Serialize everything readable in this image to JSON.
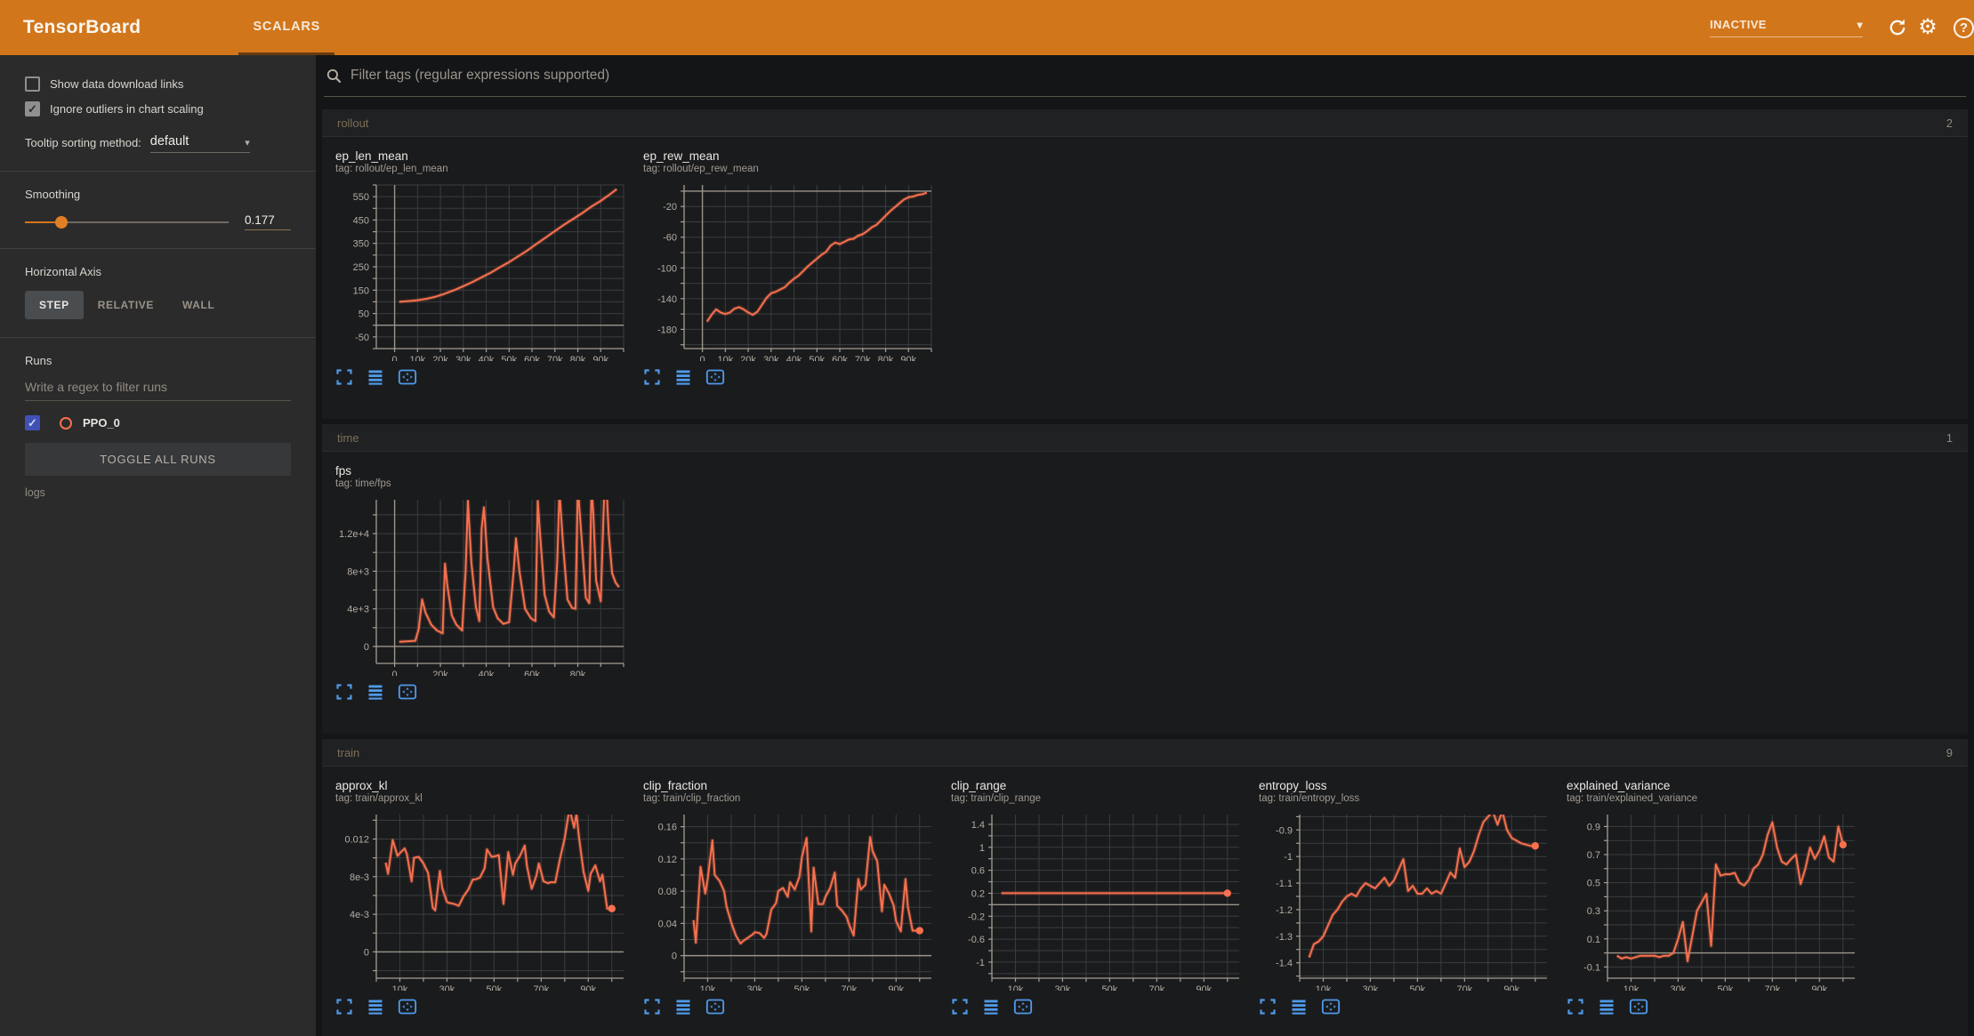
{
  "topbar": {
    "title": "TensorBoard",
    "tab": "SCALARS",
    "status": "INACTIVE"
  },
  "colors": {
    "accent_orange": "#d2761c",
    "series_line": "#f8704e",
    "icon_blue": "#4f9bea",
    "run_checkbox": "#3f51b5"
  },
  "sidebar": {
    "checkboxes": [
      {
        "label": "Show data download links",
        "checked": false
      },
      {
        "label": "Ignore outliers in chart scaling",
        "checked": true
      }
    ],
    "tooltip_sort": {
      "label": "Tooltip sorting method:",
      "value": "default"
    },
    "smoothing": {
      "label": "Smoothing",
      "value": "0.177"
    },
    "horizontal_axis": {
      "label": "Horizontal Axis",
      "options": [
        "STEP",
        "RELATIVE",
        "WALL"
      ],
      "selected": "STEP"
    },
    "runs": {
      "label": "Runs",
      "filter_placeholder": "Write a regex to filter runs",
      "items": [
        {
          "name": "PPO_0",
          "checked": true,
          "color": "#f8704e"
        }
      ],
      "toggle_all_label": "TOGGLE ALL RUNS",
      "footer": "logs"
    }
  },
  "main": {
    "filter_placeholder": "Filter tags (regular expressions supported)",
    "sections": [
      {
        "name": "rollout",
        "count": "2"
      },
      {
        "name": "time",
        "count": "1"
      },
      {
        "name": "train",
        "count": "9"
      }
    ]
  },
  "chart_data": [
    {
      "type": "line",
      "section": "rollout",
      "title": "ep_len_mean",
      "tag": "tag: rollout/ep_len_mean",
      "xlim": [
        -8,
        100
      ],
      "ylim": [
        -100,
        600
      ],
      "xgrid": 10,
      "ygrid": 50,
      "zero_h": true,
      "zero_v": true,
      "endpoint": false,
      "xticks": [
        [
          0,
          "0"
        ],
        [
          10,
          "10k"
        ],
        [
          20,
          "20k"
        ],
        [
          30,
          "30k"
        ],
        [
          40,
          "40k"
        ],
        [
          50,
          "50k"
        ],
        [
          60,
          "60k"
        ],
        [
          70,
          "70k"
        ],
        [
          80,
          "80k"
        ],
        [
          90,
          "90k"
        ]
      ],
      "yticks": [
        [
          -50,
          "-50"
        ],
        [
          50,
          "50"
        ],
        [
          150,
          "150"
        ],
        [
          250,
          "250"
        ],
        [
          350,
          "350"
        ],
        [
          450,
          "450"
        ],
        [
          550,
          "550"
        ]
      ],
      "x_k": [
        2,
        6,
        10,
        14,
        18,
        22,
        26,
        30,
        34,
        38,
        42,
        46,
        50,
        54,
        58,
        62,
        66,
        70,
        74,
        78,
        82,
        86,
        90,
        94,
        97
      ],
      "y": [
        100,
        103,
        107,
        113,
        122,
        135,
        150,
        167,
        185,
        205,
        225,
        248,
        270,
        295,
        320,
        348,
        375,
        403,
        430,
        455,
        480,
        508,
        532,
        560,
        582
      ]
    },
    {
      "type": "line",
      "section": "rollout",
      "title": "ep_rew_mean",
      "tag": "tag: rollout/ep_rew_mean",
      "xlim": [
        -8,
        100
      ],
      "ylim": [
        -205,
        8
      ],
      "xgrid": 10,
      "ygrid": 20,
      "zero_h": true,
      "zero_v": true,
      "endpoint": false,
      "xticks": [
        [
          0,
          "0"
        ],
        [
          10,
          "10k"
        ],
        [
          20,
          "20k"
        ],
        [
          30,
          "30k"
        ],
        [
          40,
          "40k"
        ],
        [
          50,
          "50k"
        ],
        [
          60,
          "60k"
        ],
        [
          70,
          "70k"
        ],
        [
          80,
          "80k"
        ],
        [
          90,
          "90k"
        ]
      ],
      "yticks": [
        [
          -180,
          "-180"
        ],
        [
          -140,
          "-140"
        ],
        [
          -100,
          "-100"
        ],
        [
          -60,
          "-60"
        ],
        [
          -20,
          "-20"
        ]
      ],
      "x_k": [
        2,
        4,
        6,
        8,
        10,
        12,
        14,
        16,
        18,
        20,
        22,
        24,
        26,
        28,
        30,
        32,
        34,
        36,
        38,
        40,
        42,
        44,
        46,
        48,
        50,
        52,
        54,
        56,
        58,
        60,
        62,
        64,
        66,
        68,
        70,
        72,
        74,
        76,
        78,
        80,
        82,
        84,
        86,
        88,
        90,
        92,
        94,
        96,
        98
      ],
      "y": [
        -170,
        -161,
        -154,
        -158,
        -160,
        -158,
        -153,
        -151,
        -154,
        -158,
        -161,
        -157,
        -148,
        -139,
        -133,
        -131,
        -128,
        -125,
        -119,
        -114,
        -110,
        -104,
        -98,
        -93,
        -88,
        -83,
        -79,
        -71,
        -67,
        -69,
        -66,
        -63,
        -62,
        -58,
        -56,
        -52,
        -47,
        -44,
        -38,
        -32,
        -26,
        -21,
        -16,
        -11,
        -8,
        -7,
        -5,
        -4,
        -2
      ]
    },
    {
      "type": "line",
      "section": "time",
      "title": "fps",
      "tag": "tag: time/fps",
      "xlim": [
        -8,
        100
      ],
      "ylim": [
        -1800,
        15600
      ],
      "xgrid": 10,
      "ygrid": 2000,
      "zero_h": true,
      "zero_v": true,
      "endpoint": false,
      "xticks": [
        [
          0,
          "0"
        ],
        [
          20,
          "20k"
        ],
        [
          40,
          "40k"
        ],
        [
          60,
          "60k"
        ],
        [
          80,
          "80k"
        ]
      ],
      "yticks": [
        [
          0,
          "0"
        ],
        [
          4000,
          "4e+3"
        ],
        [
          8000,
          "8e+3"
        ],
        [
          12000,
          "1.2e+4"
        ]
      ],
      "x_k": [
        2,
        9,
        10.5,
        12,
        13.5,
        16,
        18.5,
        21,
        22,
        23,
        25,
        27,
        29.5,
        31,
        32,
        33.5,
        35.5,
        37,
        38,
        39,
        40.5,
        43,
        45,
        47.5,
        50,
        52,
        53,
        54.5,
        57,
        59.5,
        61.5,
        62.5,
        63.5,
        65.5,
        67.5,
        69.5,
        71,
        72,
        73.5,
        75.5,
        77.5,
        79,
        80,
        81.5,
        83.5,
        85,
        86,
        86.8,
        88,
        90,
        91.5,
        92.5,
        93.5,
        95,
        96.5,
        98
      ],
      "y": [
        500,
        600,
        1800,
        5000,
        3600,
        2300,
        1700,
        1400,
        8800,
        6500,
        3300,
        2300,
        1700,
        8000,
        15500,
        9000,
        4200,
        2700,
        12500,
        14800,
        9500,
        4200,
        3000,
        2400,
        2600,
        8000,
        11500,
        8000,
        4000,
        3000,
        2700,
        15500,
        12000,
        5500,
        3700,
        3100,
        9000,
        16500,
        11000,
        5000,
        4100,
        4000,
        17000,
        12000,
        5200,
        4600,
        17000,
        14000,
        7000,
        4800,
        16000,
        17000,
        12000,
        7800,
        6800,
        6300
      ]
    },
    {
      "type": "line",
      "section": "train",
      "title": "approx_kl",
      "tag": "tag: train/approx_kl",
      "xlim": [
        0,
        105
      ],
      "ylim": [
        -0.0028,
        0.0146
      ],
      "xgrid": 10,
      "ygrid": 0.002,
      "zero_h": true,
      "zero_v": false,
      "endpoint": true,
      "xticks": [
        [
          10,
          "10k"
        ],
        [
          30,
          "30k"
        ],
        [
          50,
          "50k"
        ],
        [
          70,
          "70k"
        ],
        [
          90,
          "90k"
        ]
      ],
      "yticks": [
        [
          0,
          "0"
        ],
        [
          0.004,
          "4e-3"
        ],
        [
          0.008,
          "8e-3"
        ],
        [
          0.012,
          "0.012"
        ]
      ],
      "x_k": [
        4,
        5,
        7,
        9,
        10,
        12,
        13,
        15,
        16,
        18,
        20,
        22,
        24,
        25,
        27,
        28,
        30,
        31,
        33,
        35,
        37,
        39,
        41,
        42,
        44,
        46,
        47,
        49,
        51,
        52,
        54,
        56,
        58,
        59,
        61,
        63,
        64,
        66,
        68,
        69,
        71,
        73,
        74,
        76,
        78,
        80,
        82,
        84,
        85,
        86,
        88,
        90,
        91,
        93,
        95,
        96,
        98,
        100
      ],
      "y": [
        0.0095,
        0.0083,
        0.0119,
        0.0102,
        0.0105,
        0.011,
        0.0104,
        0.0075,
        0.01,
        0.0101,
        0.0094,
        0.0084,
        0.0047,
        0.0044,
        0.0086,
        0.0068,
        0.0053,
        0.0052,
        0.0051,
        0.0049,
        0.0059,
        0.0066,
        0.0077,
        0.0077,
        0.0079,
        0.0089,
        0.0109,
        0.0101,
        0.0102,
        0.0103,
        0.0051,
        0.0106,
        0.0082,
        0.0094,
        0.0102,
        0.0113,
        0.0091,
        0.0067,
        0.0081,
        0.0094,
        0.0075,
        0.0073,
        0.0074,
        0.0074,
        0.0099,
        0.0121,
        0.0152,
        0.0132,
        0.0147,
        0.0123,
        0.0085,
        0.0065,
        0.0083,
        0.0092,
        0.0075,
        0.0082,
        0.0046,
        0.0046
      ]
    },
    {
      "type": "line",
      "section": "train",
      "title": "clip_fraction",
      "tag": "tag: train/clip_fraction",
      "xlim": [
        0,
        105
      ],
      "ylim": [
        -0.028,
        0.175
      ],
      "xgrid": 10,
      "ygrid": 0.02,
      "zero_h": true,
      "zero_v": false,
      "endpoint": true,
      "xticks": [
        [
          10,
          "10k"
        ],
        [
          30,
          "30k"
        ],
        [
          50,
          "50k"
        ],
        [
          70,
          "70k"
        ],
        [
          90,
          "90k"
        ]
      ],
      "yticks": [
        [
          0,
          "0"
        ],
        [
          0.04,
          "0.04"
        ],
        [
          0.08,
          "0.08"
        ],
        [
          0.12,
          "0.12"
        ],
        [
          0.16,
          "0.16"
        ]
      ],
      "x_k": [
        4,
        5,
        7,
        9,
        10,
        12,
        13,
        15,
        17,
        18,
        20,
        22,
        24,
        25,
        27,
        29,
        30,
        32,
        34,
        35,
        37,
        39,
        40,
        42,
        44,
        45,
        47,
        49,
        50,
        52,
        54,
        55,
        57,
        59,
        60,
        62,
        64,
        65,
        67,
        69,
        70,
        72,
        74,
        75,
        77,
        79,
        80,
        82,
        84,
        85,
        87,
        89,
        90,
        92,
        94,
        95,
        97,
        100
      ],
      "y": [
        0.044,
        0.016,
        0.11,
        0.077,
        0.095,
        0.143,
        0.1,
        0.093,
        0.08,
        0.061,
        0.041,
        0.025,
        0.015,
        0.018,
        0.022,
        0.026,
        0.029,
        0.028,
        0.022,
        0.027,
        0.057,
        0.065,
        0.08,
        0.084,
        0.073,
        0.091,
        0.082,
        0.098,
        0.122,
        0.146,
        0.03,
        0.109,
        0.064,
        0.064,
        0.073,
        0.084,
        0.103,
        0.062,
        0.056,
        0.048,
        0.039,
        0.025,
        0.095,
        0.082,
        0.088,
        0.147,
        0.13,
        0.117,
        0.055,
        0.088,
        0.077,
        0.062,
        0.043,
        0.03,
        0.095,
        0.061,
        0.031,
        0.031
      ]
    },
    {
      "type": "line",
      "section": "train",
      "title": "clip_range",
      "tag": "tag: train/clip_range",
      "xlim": [
        0,
        105
      ],
      "ylim": [
        -1.28,
        1.57
      ],
      "xgrid": 10,
      "ygrid": 0.2,
      "zero_h": true,
      "zero_v": false,
      "endpoint": true,
      "xticks": [
        [
          10,
          "10k"
        ],
        [
          30,
          "30k"
        ],
        [
          50,
          "50k"
        ],
        [
          70,
          "70k"
        ],
        [
          90,
          "90k"
        ]
      ],
      "yticks": [
        [
          -1,
          "-1"
        ],
        [
          -0.6,
          "-0.6"
        ],
        [
          -0.2,
          "-0.2"
        ],
        [
          0.2,
          "0.2"
        ],
        [
          0.6,
          "0.6"
        ],
        [
          1,
          "1"
        ],
        [
          1.4,
          "1.4"
        ]
      ],
      "x_k": [
        4,
        100
      ],
      "y": [
        0.2,
        0.2
      ]
    },
    {
      "type": "line",
      "section": "train",
      "title": "entropy_loss",
      "tag": "tag: train/entropy_loss",
      "xlim": [
        0,
        105
      ],
      "ylim": [
        -1.458,
        -0.842
      ],
      "xgrid": 10,
      "ygrid": 0.05,
      "zero_h": false,
      "zero_v": false,
      "endpoint": true,
      "xticks": [
        [
          10,
          "10k"
        ],
        [
          30,
          "30k"
        ],
        [
          50,
          "50k"
        ],
        [
          70,
          "70k"
        ],
        [
          90,
          "90k"
        ]
      ],
      "yticks": [
        [
          -1.4,
          "-1.4"
        ],
        [
          -1.3,
          "-1.3"
        ],
        [
          -1.2,
          "-1.2"
        ],
        [
          -1.1,
          "-1.1"
        ],
        [
          -1,
          "-1"
        ],
        [
          -0.9,
          "-0.9"
        ]
      ],
      "x_k": [
        4,
        6,
        8,
        10,
        12,
        14,
        16,
        18,
        20,
        22,
        24,
        26,
        28,
        30,
        32,
        34,
        36,
        38,
        40,
        42,
        44,
        46,
        48,
        50,
        52,
        54,
        56,
        58,
        60,
        62,
        64,
        66,
        68,
        70,
        72,
        74,
        76,
        78,
        80,
        82,
        84,
        86,
        88,
        90,
        92,
        94,
        96,
        98,
        100
      ],
      "y": [
        -1.38,
        -1.33,
        -1.32,
        -1.3,
        -1.26,
        -1.22,
        -1.2,
        -1.17,
        -1.15,
        -1.14,
        -1.15,
        -1.12,
        -1.1,
        -1.11,
        -1.12,
        -1.1,
        -1.08,
        -1.11,
        -1.09,
        -1.05,
        -1.01,
        -1.13,
        -1.11,
        -1.14,
        -1.14,
        -1.12,
        -1.14,
        -1.13,
        -1.14,
        -1.1,
        -1.06,
        -1.08,
        -0.97,
        -1.04,
        -1.02,
        -0.98,
        -0.92,
        -0.87,
        -0.85,
        -0.83,
        -0.88,
        -0.83,
        -0.9,
        -0.93,
        -0.94,
        -0.95,
        -0.955,
        -0.96,
        -0.96
      ]
    },
    {
      "type": "line",
      "section": "train",
      "title": "explained_variance",
      "tag": "tag: train/explained_variance",
      "xlim": [
        0,
        105
      ],
      "ylim": [
        -0.18,
        0.985
      ],
      "xgrid": 10,
      "ygrid": 0.1,
      "zero_h": true,
      "zero_v": false,
      "endpoint": true,
      "xticks": [
        [
          10,
          "10k"
        ],
        [
          30,
          "30k"
        ],
        [
          50,
          "50k"
        ],
        [
          70,
          "70k"
        ],
        [
          90,
          "90k"
        ]
      ],
      "yticks": [
        [
          -0.1,
          "-0.1"
        ],
        [
          0.1,
          "0.1"
        ],
        [
          0.3,
          "0.3"
        ],
        [
          0.5,
          "0.5"
        ],
        [
          0.7,
          "0.7"
        ],
        [
          0.9,
          "0.9"
        ]
      ],
      "x_k": [
        4,
        6,
        8,
        10,
        12,
        14,
        16,
        18,
        20,
        22,
        24,
        26,
        28,
        30,
        32,
        34,
        36,
        38,
        40,
        42,
        44,
        46,
        48,
        50,
        52,
        54,
        56,
        58,
        60,
        62,
        64,
        66,
        68,
        70,
        72,
        74,
        76,
        78,
        80,
        82,
        84,
        86,
        88,
        90,
        92,
        94,
        96,
        98,
        100
      ],
      "y": [
        -0.02,
        -0.04,
        -0.03,
        -0.04,
        -0.03,
        -0.02,
        -0.02,
        -0.02,
        -0.02,
        -0.03,
        -0.02,
        -0.02,
        0.0,
        0.1,
        0.22,
        -0.06,
        0.12,
        0.3,
        0.36,
        0.42,
        0.05,
        0.63,
        0.55,
        0.56,
        0.56,
        0.57,
        0.5,
        0.48,
        0.52,
        0.6,
        0.63,
        0.7,
        0.84,
        0.93,
        0.75,
        0.65,
        0.63,
        0.67,
        0.7,
        0.49,
        0.6,
        0.75,
        0.67,
        0.73,
        0.83,
        0.68,
        0.65,
        0.9,
        0.77
      ]
    }
  ]
}
